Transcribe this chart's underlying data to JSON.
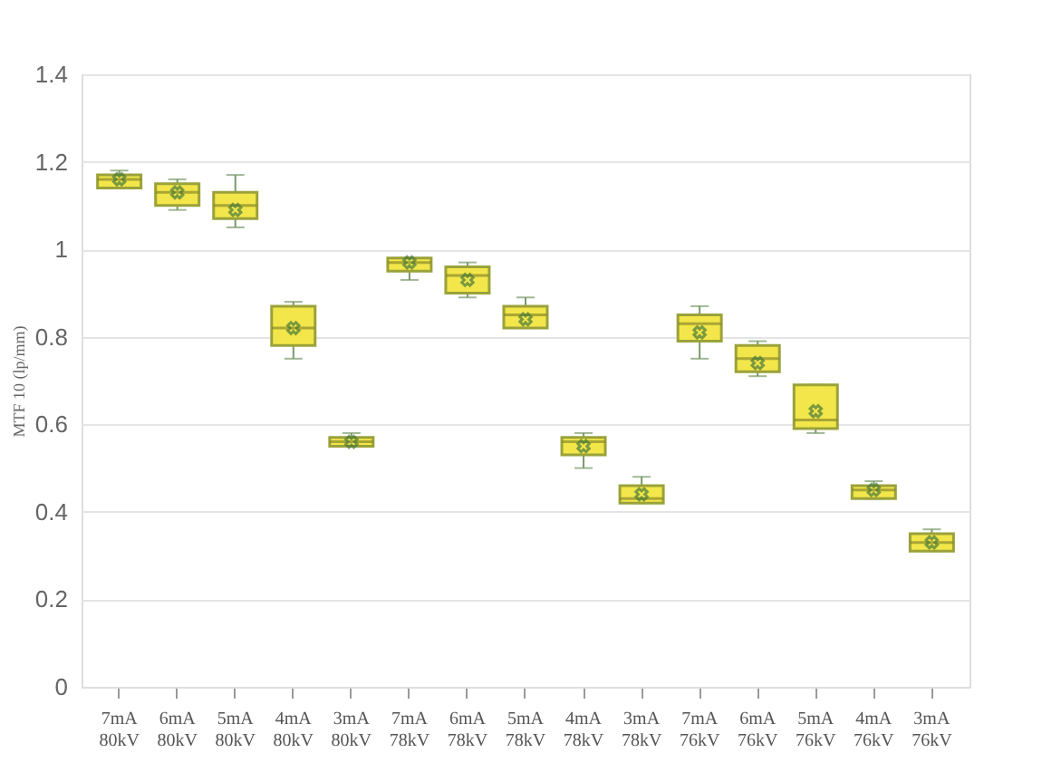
{
  "chart_data": {
    "type": "box",
    "ylabel": "MTF 10 (lp/mm)",
    "color": "#f2e64a",
    "categories": [
      "7mA 80kV",
      "6mA 80kV",
      "5mA 80kV",
      "4mA 80kV",
      "3mA 80kV",
      "7mA 78kV",
      "6mA 78kV",
      "5mA 78kV",
      "4mA 78kV",
      "3mA 78kV",
      "7mA 76kV",
      "6mA 76kV",
      "5mA 76kV",
      "4mA 76kV",
      "3mA 76kV"
    ],
    "boxes": [
      {
        "low": 1.14,
        "q1": 1.14,
        "median": 1.16,
        "q3": 1.17,
        "high": 1.18,
        "mean": 1.16
      },
      {
        "low": 1.09,
        "q1": 1.1,
        "median": 1.13,
        "q3": 1.15,
        "high": 1.16,
        "mean": 1.13
      },
      {
        "low": 1.05,
        "q1": 1.07,
        "median": 1.1,
        "q3": 1.13,
        "high": 1.17,
        "mean": 1.09
      },
      {
        "low": 0.75,
        "q1": 0.78,
        "median": 0.82,
        "q3": 0.87,
        "high": 0.88,
        "mean": 0.82
      },
      {
        "low": 0.55,
        "q1": 0.55,
        "median": 0.56,
        "q3": 0.57,
        "high": 0.58,
        "mean": 0.56
      },
      {
        "low": 0.93,
        "q1": 0.95,
        "median": 0.97,
        "q3": 0.98,
        "high": 0.98,
        "mean": 0.97
      },
      {
        "low": 0.89,
        "q1": 0.9,
        "median": 0.94,
        "q3": 0.96,
        "high": 0.97,
        "mean": 0.93
      },
      {
        "low": 0.82,
        "q1": 0.82,
        "median": 0.85,
        "q3": 0.87,
        "high": 0.89,
        "mean": 0.84
      },
      {
        "low": 0.5,
        "q1": 0.53,
        "median": 0.56,
        "q3": 0.57,
        "high": 0.58,
        "mean": 0.55
      },
      {
        "low": 0.42,
        "q1": 0.42,
        "median": 0.43,
        "q3": 0.46,
        "high": 0.48,
        "mean": 0.44
      },
      {
        "low": 0.75,
        "q1": 0.79,
        "median": 0.83,
        "q3": 0.85,
        "high": 0.87,
        "mean": 0.81
      },
      {
        "low": 0.71,
        "q1": 0.72,
        "median": 0.75,
        "q3": 0.78,
        "high": 0.79,
        "mean": 0.74
      },
      {
        "low": 0.58,
        "q1": 0.59,
        "median": 0.61,
        "q3": 0.69,
        "high": 0.69,
        "mean": 0.63
      },
      {
        "low": 0.43,
        "q1": 0.43,
        "median": 0.45,
        "q3": 0.46,
        "high": 0.47,
        "mean": 0.45
      },
      {
        "low": 0.31,
        "q1": 0.31,
        "median": 0.33,
        "q3": 0.35,
        "high": 0.36,
        "mean": 0.33
      }
    ],
    "ylim": [
      0,
      1.4
    ],
    "yticks": [
      0,
      0.2,
      0.4,
      0.6,
      0.8,
      1,
      1.2,
      1.4
    ],
    "grid": "y",
    "marker": "cross"
  }
}
